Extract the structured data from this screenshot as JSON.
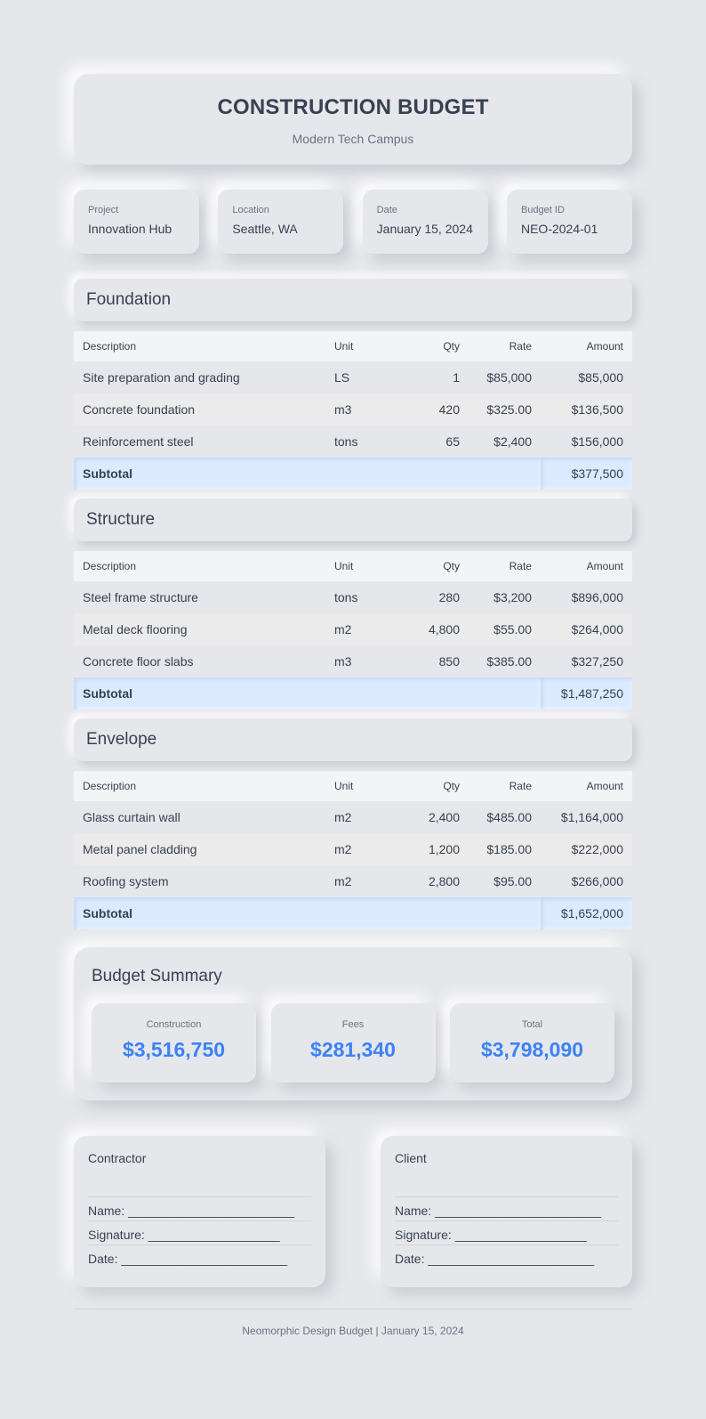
{
  "header": {
    "title": "CONSTRUCTION BUDGET",
    "subtitle": "Modern Tech Campus"
  },
  "info": [
    {
      "label": "Project",
      "value": "Innovation Hub"
    },
    {
      "label": "Location",
      "value": "Seattle, WA"
    },
    {
      "label": "Date",
      "value": "January 15, 2024"
    },
    {
      "label": "Budget ID",
      "value": "NEO-2024-01"
    }
  ],
  "columns": {
    "description": "Description",
    "unit": "Unit",
    "qty": "Qty",
    "rate": "Rate",
    "amount": "Amount"
  },
  "sections": [
    {
      "title": "Foundation",
      "rows": [
        {
          "description": "Site preparation and grading",
          "unit": "LS",
          "qty": "1",
          "rate": "$85,000",
          "amount": "$85,000"
        },
        {
          "description": "Concrete foundation",
          "unit": "m3",
          "qty": "420",
          "rate": "$325.00",
          "amount": "$136,500"
        },
        {
          "description": "Reinforcement steel",
          "unit": "tons",
          "qty": "65",
          "rate": "$2,400",
          "amount": "$156,000"
        }
      ],
      "subtotal_label": "Subtotal",
      "subtotal": "$377,500"
    },
    {
      "title": "Structure",
      "rows": [
        {
          "description": "Steel frame structure",
          "unit": "tons",
          "qty": "280",
          "rate": "$3,200",
          "amount": "$896,000"
        },
        {
          "description": "Metal deck flooring",
          "unit": "m2",
          "qty": "4,800",
          "rate": "$55.00",
          "amount": "$264,000"
        },
        {
          "description": "Concrete floor slabs",
          "unit": "m3",
          "qty": "850",
          "rate": "$385.00",
          "amount": "$327,250"
        }
      ],
      "subtotal_label": "Subtotal",
      "subtotal": "$1,487,250"
    },
    {
      "title": "Envelope",
      "rows": [
        {
          "description": "Glass curtain wall",
          "unit": "m2",
          "qty": "2,400",
          "rate": "$485.00",
          "amount": "$1,164,000"
        },
        {
          "description": "Metal panel cladding",
          "unit": "m2",
          "qty": "1,200",
          "rate": "$185.00",
          "amount": "$222,000"
        },
        {
          "description": "Roofing system",
          "unit": "m2",
          "qty": "2,800",
          "rate": "$95.00",
          "amount": "$266,000"
        }
      ],
      "subtotal_label": "Subtotal",
      "subtotal": "$1,652,000"
    }
  ],
  "summary": {
    "title": "Budget Summary",
    "cards": [
      {
        "label": "Construction",
        "value": "$3,516,750"
      },
      {
        "label": "Fees",
        "value": "$281,340"
      },
      {
        "label": "Total",
        "value": "$3,798,090"
      }
    ]
  },
  "signatures": [
    {
      "title": "Contractor",
      "name_line": "Name: ________________________",
      "signature_line": "Signature: ___________________",
      "date_line": "Date: ________________________"
    },
    {
      "title": "Client",
      "name_line": "Name: ________________________",
      "signature_line": "Signature: ___________________",
      "date_line": "Date: ________________________"
    }
  ],
  "footer": {
    "text": "Neomorphic Design Budget | January 15, 2024"
  },
  "colors": {
    "background": "#e6e7eb",
    "accent": "#3b82f6",
    "subtotal_bg": "#dbeafe",
    "text": "#374151",
    "muted": "#6b7280"
  }
}
